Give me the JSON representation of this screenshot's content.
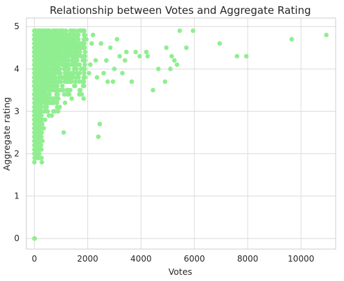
{
  "chart_data": {
    "type": "scatter",
    "title": "Relationship between Votes and  Aggregate Rating",
    "xlabel": "Votes",
    "ylabel": "Aggregate rating",
    "xlim": [
      -300,
      11300
    ],
    "ylim": [
      -0.25,
      5.2
    ],
    "xticks": [
      0,
      2000,
      4000,
      6000,
      8000,
      10000
    ],
    "yticks": [
      0,
      1,
      2,
      3,
      4,
      5
    ],
    "grid": true,
    "marker_color": "#90ee90",
    "series": [
      {
        "values": [
          [
            0,
            0
          ],
          [
            5,
            0
          ],
          [
            10,
            0
          ],
          [
            10950,
            4.8
          ],
          [
            9650,
            4.7
          ],
          [
            7950,
            4.3
          ],
          [
            7600,
            4.3
          ],
          [
            6950,
            4.6
          ],
          [
            5950,
            4.9
          ],
          [
            5700,
            4.5
          ],
          [
            5450,
            4.9
          ],
          [
            5350,
            4.1
          ],
          [
            5250,
            4.2
          ],
          [
            5150,
            4.3
          ],
          [
            5100,
            4.0
          ],
          [
            4950,
            4.5
          ],
          [
            4900,
            3.7
          ],
          [
            4650,
            4.0
          ],
          [
            4450,
            3.5
          ],
          [
            4250,
            4.3
          ],
          [
            4200,
            4.4
          ],
          [
            3950,
            4.3
          ],
          [
            3800,
            4.4
          ],
          [
            3650,
            3.7
          ],
          [
            3450,
            4.4
          ],
          [
            3400,
            4.2
          ],
          [
            3300,
            3.9
          ],
          [
            3200,
            4.3
          ],
          [
            3100,
            4.7
          ],
          [
            3000,
            4.0
          ],
          [
            2950,
            3.7
          ],
          [
            2850,
            4.5
          ],
          [
            2750,
            3.7
          ],
          [
            2700,
            4.2
          ],
          [
            2600,
            3.9
          ],
          [
            2500,
            4.6
          ],
          [
            2450,
            2.7
          ],
          [
            2400,
            2.4
          ],
          [
            2350,
            3.8
          ],
          [
            2300,
            4.2
          ],
          [
            2200,
            4.8
          ],
          [
            2150,
            4.6
          ],
          [
            2100,
            4.1
          ],
          [
            2050,
            3.9
          ],
          [
            1950,
            4.7
          ],
          [
            1900,
            4.4
          ],
          [
            1850,
            3.3
          ],
          [
            1800,
            3.7
          ],
          [
            1750,
            4.5
          ],
          [
            1700,
            3.5
          ],
          [
            1650,
            4.9
          ],
          [
            1600,
            3.9
          ],
          [
            1550,
            4.3
          ],
          [
            1500,
            3.6
          ],
          [
            1450,
            4.1
          ],
          [
            1400,
            3.3
          ],
          [
            1350,
            3.8
          ],
          [
            1300,
            4.7
          ],
          [
            1250,
            3.4
          ],
          [
            1200,
            4.0
          ],
          [
            1150,
            3.2
          ],
          [
            1100,
            2.5
          ],
          [
            1050,
            3.6
          ],
          [
            1000,
            4.2
          ],
          [
            950,
            3.1
          ],
          [
            900,
            4.6
          ],
          [
            850,
            3.7
          ],
          [
            800,
            3.3
          ],
          [
            750,
            4.8
          ],
          [
            700,
            3.9
          ],
          [
            650,
            3.2
          ],
          [
            600,
            4.4
          ],
          [
            550,
            3.6
          ],
          [
            500,
            3.0
          ],
          [
            450,
            4.9
          ],
          [
            400,
            2.8
          ],
          [
            350,
            2.6
          ],
          [
            300,
            2.3
          ],
          [
            280,
            1.8
          ],
          [
            250,
            3.1
          ],
          [
            220,
            2.7
          ],
          [
            200,
            2.1
          ],
          [
            180,
            2.5
          ],
          [
            160,
            1.9
          ],
          [
            140,
            2.2
          ],
          [
            120,
            2.0
          ],
          [
            100,
            2.4
          ],
          [
            80,
            1.9
          ],
          [
            60,
            2.6
          ],
          [
            40,
            2.1
          ],
          [
            20,
            2.8
          ],
          [
            10,
            3.0
          ]
        ]
      }
    ]
  }
}
